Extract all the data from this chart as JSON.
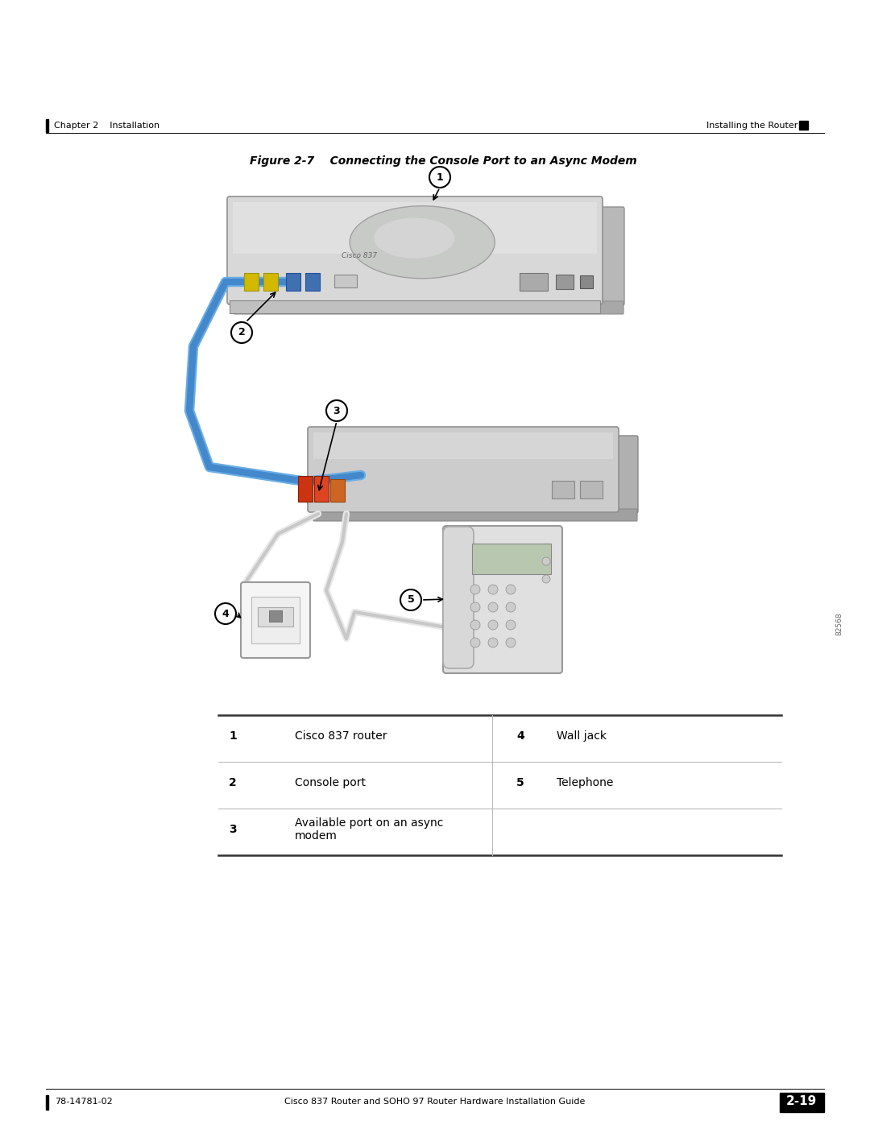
{
  "background_color": "#ffffff",
  "page_width": 10.8,
  "page_height": 13.97,
  "header_left": "Chapter 2    Installation",
  "header_right": "Installing the Router",
  "figure_title": "Figure 2-7    Connecting the Console Port to an Async Modem",
  "table": {
    "col1": [
      {
        "num": "1",
        "label": "Cisco 837 router"
      },
      {
        "num": "2",
        "label": "Console port"
      },
      {
        "num": "3",
        "label": "Available port on an async\nmodem"
      }
    ],
    "col2": [
      {
        "num": "4",
        "label": "Wall jack"
      },
      {
        "num": "5",
        "label": "Telephone"
      },
      {
        "num": "",
        "label": ""
      }
    ]
  },
  "footer_center": "Cisco 837 Router and SOHO 97 Router Hardware Installation Guide",
  "footer_left": "78-14781-02",
  "footer_right": "2-19"
}
